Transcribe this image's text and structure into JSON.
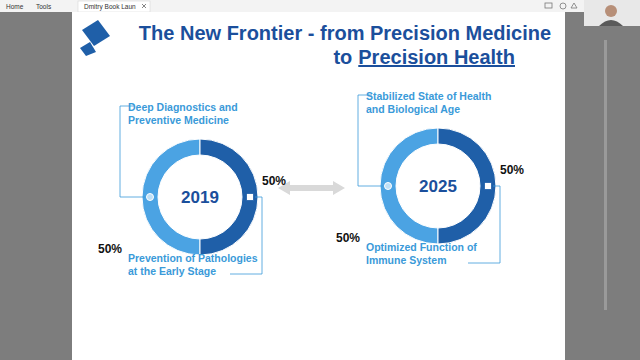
{
  "page": {
    "tabs": [
      "Home",
      "Tools",
      "Dmitry Book Laun"
    ],
    "title": "The New Frontier - from Precision Medicine",
    "title_prefix": "to",
    "title_emphasis": "Precision Health"
  },
  "chart_data": [
    {
      "type": "pie",
      "title": "2019",
      "categories": [
        "Deep Diagnostics and Preventive Medicine",
        "Prevention of Pathologies at the Early Stage"
      ],
      "values": [
        50,
        50
      ],
      "value_labels": [
        "50%",
        "50%"
      ],
      "colors": [
        "#4ba3e3",
        "#1f5fa8"
      ],
      "data_labels": true
    },
    {
      "type": "pie",
      "title": "2025",
      "categories": [
        "Stabilized State of Health and Biological Age",
        "Optimized Function of Immune System"
      ],
      "values": [
        50,
        50
      ],
      "value_labels": [
        "50%",
        "50%"
      ],
      "colors": [
        "#4ba3e3",
        "#1f5fa8"
      ],
      "data_labels": true
    }
  ]
}
